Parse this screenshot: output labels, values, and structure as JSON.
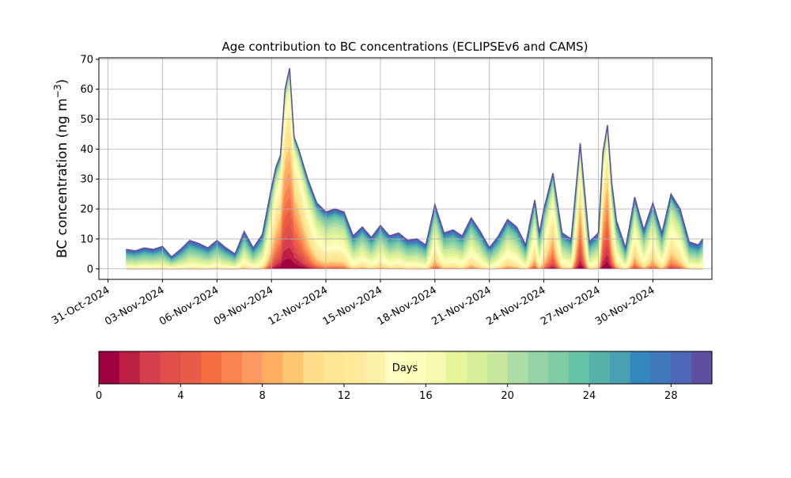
{
  "chart_data": {
    "type": "area",
    "title": "Age contribution to BC concentrations (ECLIPSEv6 and CAMS)",
    "xlabel": "",
    "ylabel": "BC concentration (ng m",
    "ylabel_sup": "−3",
    "ylabel_close": ")",
    "x_range": [
      "2024-10-30T12:00",
      "2024-12-03T06:00"
    ],
    "ylim": [
      -3.5,
      70.5
    ],
    "yticks": [
      0,
      10,
      20,
      30,
      40,
      50,
      60,
      70
    ],
    "xticks": [
      "2024-10-31",
      "2024-11-03",
      "2024-11-06",
      "2024-11-09",
      "2024-11-12",
      "2024-11-15",
      "2024-11-18",
      "2024-11-21",
      "2024-11-24",
      "2024-11-27",
      "2024-11-30"
    ],
    "xtick_labels": [
      "31-Oct-2024",
      "03-Nov-2024",
      "06-Nov-2024",
      "09-Nov-2024",
      "12-Nov-2024",
      "15-Nov-2024",
      "18-Nov-2024",
      "21-Nov-2024",
      "24-Nov-2024",
      "27-Nov-2024",
      "30-Nov-2024"
    ],
    "grid": true,
    "total_series": [
      [
        "2024-11-01T00:00",
        6.5
      ],
      [
        "2024-11-01T12:00",
        6.0
      ],
      [
        "2024-11-02T00:00",
        7.0
      ],
      [
        "2024-11-02T12:00",
        6.5
      ],
      [
        "2024-11-03T00:00",
        7.5
      ],
      [
        "2024-11-03T12:00",
        4.0
      ],
      [
        "2024-11-04T00:00",
        6.5
      ],
      [
        "2024-11-04T12:00",
        9.5
      ],
      [
        "2024-11-05T00:00",
        8.5
      ],
      [
        "2024-11-05T12:00",
        7.0
      ],
      [
        "2024-11-06T00:00",
        9.5
      ],
      [
        "2024-11-06T12:00",
        7.0
      ],
      [
        "2024-11-07T00:00",
        5.0
      ],
      [
        "2024-11-07T12:00",
        12.5
      ],
      [
        "2024-11-08T00:00",
        7.0
      ],
      [
        "2024-11-08T12:00",
        11.5
      ],
      [
        "2024-11-09T00:00",
        27.0
      ],
      [
        "2024-11-09T06:00",
        34.0
      ],
      [
        "2024-11-09T12:00",
        38.0
      ],
      [
        "2024-11-09T18:00",
        60.0
      ],
      [
        "2024-11-10T00:00",
        67.0
      ],
      [
        "2024-11-10T06:00",
        44.0
      ],
      [
        "2024-11-10T12:00",
        40.0
      ],
      [
        "2024-11-11T00:00",
        30.0
      ],
      [
        "2024-11-11T12:00",
        22.0
      ],
      [
        "2024-11-12T00:00",
        19.0
      ],
      [
        "2024-11-12T12:00",
        20.0
      ],
      [
        "2024-11-13T00:00",
        19.0
      ],
      [
        "2024-11-13T12:00",
        11.0
      ],
      [
        "2024-11-14T00:00",
        14.0
      ],
      [
        "2024-11-14T12:00",
        10.5
      ],
      [
        "2024-11-15T00:00",
        14.5
      ],
      [
        "2024-11-15T12:00",
        11.0
      ],
      [
        "2024-11-16T00:00",
        12.0
      ],
      [
        "2024-11-16T12:00",
        9.5
      ],
      [
        "2024-11-17T00:00",
        10.0
      ],
      [
        "2024-11-17T12:00",
        8.0
      ],
      [
        "2024-11-18T00:00",
        21.5
      ],
      [
        "2024-11-18T12:00",
        12.0
      ],
      [
        "2024-11-19T00:00",
        13.0
      ],
      [
        "2024-11-19T12:00",
        11.0
      ],
      [
        "2024-11-20T00:00",
        17.0
      ],
      [
        "2024-11-20T12:00",
        12.5
      ],
      [
        "2024-11-21T00:00",
        7.0
      ],
      [
        "2024-11-21T12:00",
        11.0
      ],
      [
        "2024-11-22T00:00",
        16.5
      ],
      [
        "2024-11-22T12:00",
        14.0
      ],
      [
        "2024-11-23T00:00",
        8.0
      ],
      [
        "2024-11-23T06:00",
        16.0
      ],
      [
        "2024-11-23T12:00",
        23.0
      ],
      [
        "2024-11-23T18:00",
        12.0
      ],
      [
        "2024-11-24T00:00",
        20.0
      ],
      [
        "2024-11-24T12:00",
        32.0
      ],
      [
        "2024-11-25T00:00",
        12.0
      ],
      [
        "2024-11-25T12:00",
        10.0
      ],
      [
        "2024-11-26T00:00",
        42.0
      ],
      [
        "2024-11-26T12:00",
        9.0
      ],
      [
        "2024-11-27T00:00",
        12.0
      ],
      [
        "2024-11-27T06:00",
        39.0
      ],
      [
        "2024-11-27T12:00",
        48.0
      ],
      [
        "2024-11-27T18:00",
        28.0
      ],
      [
        "2024-11-28T00:00",
        16.0
      ],
      [
        "2024-11-28T12:00",
        7.0
      ],
      [
        "2024-11-29T00:00",
        24.0
      ],
      [
        "2024-11-29T12:00",
        13.0
      ],
      [
        "2024-11-30T00:00",
        22.0
      ],
      [
        "2024-11-30T12:00",
        12.0
      ],
      [
        "2024-12-01T00:00",
        25.0
      ],
      [
        "2024-12-01T12:00",
        20.0
      ],
      [
        "2024-12-02T00:00",
        9.0
      ],
      [
        "2024-12-02T12:00",
        8.0
      ],
      [
        "2024-12-02T18:00",
        10.0
      ]
    ],
    "age_bands_days": [
      0,
      1,
      2,
      3,
      4,
      5,
      6,
      7,
      8,
      9,
      10,
      11,
      12,
      13,
      14,
      15,
      16,
      17,
      18,
      19,
      20,
      21,
      22,
      23,
      24,
      25,
      26,
      27,
      28,
      29
    ],
    "colormap": "Spectral",
    "colorbar": {
      "label": "Days",
      "ticks": [
        0,
        4,
        8,
        12,
        16,
        20,
        24,
        28
      ],
      "range": [
        0,
        30
      ],
      "colors": [
        "#9e0142",
        "#bd1f44",
        "#d53e4f",
        "#e04f4a",
        "#e95c47",
        "#f46d43",
        "#f8834f",
        "#fc995f",
        "#fdae61",
        "#fdc473",
        "#fee08b",
        "#fee593",
        "#feeb9b",
        "#fff2a8",
        "#ffffbf",
        "#fbfdb8",
        "#f4faae",
        "#e6f598",
        "#d6ef9a",
        "#c7e89e",
        "#abdda4",
        "#94d4a4",
        "#7ecba4",
        "#66c2a5",
        "#57b0a9",
        "#4aa0ae",
        "#3288bd",
        "#3f77b8",
        "#4e66b3",
        "#5e4fa2"
      ]
    }
  }
}
